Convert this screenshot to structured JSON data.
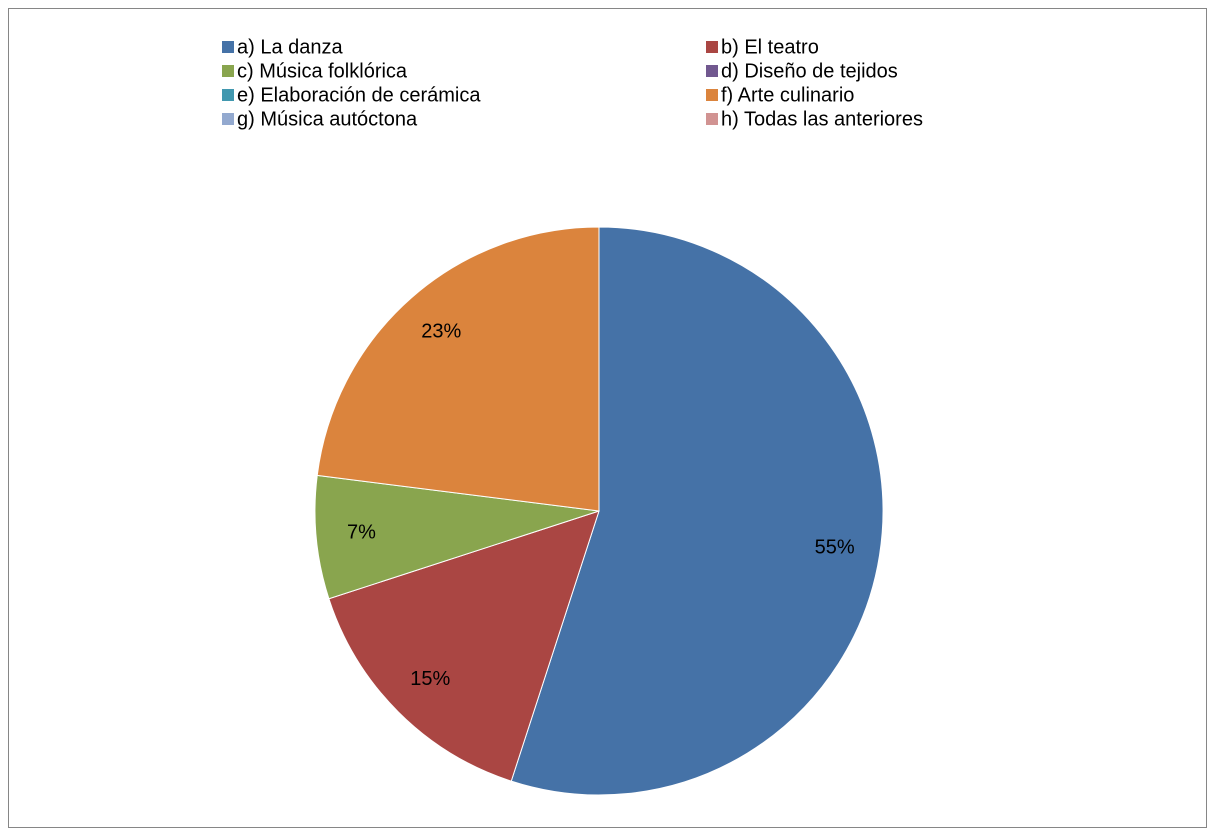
{
  "chart_data": {
    "type": "pie",
    "categories": [
      "a) La danza",
      "b) El teatro",
      "c) Música folklórica",
      "d) Diseño de tejidos",
      "e) Elaboración de cerámica",
      "f) Arte culinario",
      "g) Música autóctona",
      "h) Todas las anteriores"
    ],
    "values": [
      55,
      15,
      7,
      0,
      0,
      23,
      0,
      0
    ],
    "value_labels": [
      "55%",
      "15%",
      "7%",
      null,
      null,
      "23%",
      null,
      null
    ],
    "colors": [
      "#4572a7",
      "#aa4643",
      "#89a54e",
      "#71588f",
      "#4198af",
      "#db843d",
      "#93a9cf",
      "#d19392"
    ],
    "legend": "top"
  }
}
